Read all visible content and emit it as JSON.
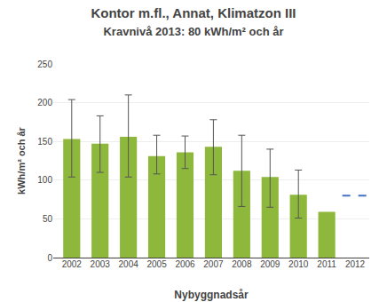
{
  "chart_data": {
    "type": "bar",
    "title": "Kontor m.fl., Annat, Klimatzon III",
    "subtitle": "Kravnivå 2013: 80 kWh/m² och år",
    "xlabel": "Nybyggnadsår",
    "ylabel": "kWh/m² och år",
    "categories": [
      "2002",
      "2003",
      "2004",
      "2005",
      "2006",
      "2007",
      "2008",
      "2009",
      "2010",
      "2011",
      "2012"
    ],
    "values": [
      153,
      147,
      156,
      131,
      136,
      143,
      112,
      104,
      81,
      59,
      null
    ],
    "error_upper": [
      204,
      183,
      210,
      158,
      157,
      178,
      158,
      140,
      113,
      null,
      null
    ],
    "error_lower": [
      104,
      110,
      104,
      108,
      115,
      107,
      66,
      65,
      51,
      null,
      null
    ],
    "color": "#8db83b",
    "reference_line": {
      "category": "2012",
      "value": 80,
      "color": "#4472c4",
      "line_style": "dashed"
    },
    "ylim": [
      0,
      250
    ],
    "yticks": [
      0,
      50,
      100,
      150,
      200,
      250
    ],
    "grid": true
  }
}
